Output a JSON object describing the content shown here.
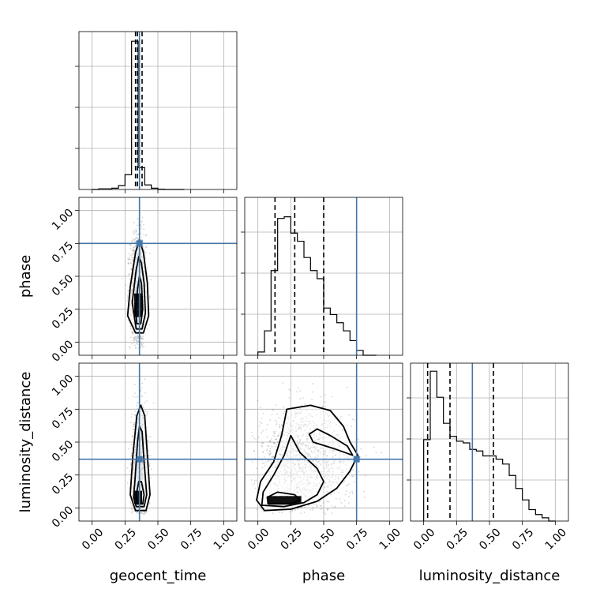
{
  "chart_data": {
    "type": "corner",
    "parameters": [
      "geocent_time",
      "phase",
      "luminosity_distance"
    ],
    "axis_range": [
      -0.1,
      1.1
    ],
    "ticks": [
      0.0,
      0.25,
      0.5,
      0.75,
      1.0
    ],
    "tick_labels": [
      "0.00",
      "0.25",
      "0.50",
      "0.75",
      "1.00"
    ],
    "axis_labels": {
      "geocent_time": "geocent_time",
      "phase": "phase",
      "luminosity_distance": "luminosity_distance"
    },
    "injection": {
      "geocent_time": 0.36,
      "phase": 0.75,
      "luminosity_distance": 0.37
    },
    "grid": true,
    "colors": {
      "truth": "#4477aa",
      "hist": "#000000",
      "grid": "#b0b0b0",
      "points": "#888888"
    },
    "marginals": {
      "geocent_time": {
        "edges": [
          0.0,
          0.05,
          0.1,
          0.15,
          0.2,
          0.25,
          0.3,
          0.35,
          0.4,
          0.45,
          0.5,
          0.55,
          0.6,
          0.65,
          0.7
        ],
        "counts": [
          0.0,
          0.1,
          0.1,
          0.2,
          0.6,
          2.3,
          23.0,
          3.4,
          0.7,
          0.2,
          0.05,
          0.0,
          0.0,
          0.0
        ],
        "ymax": 24,
        "quantiles": [
          0.33,
          0.345,
          0.38
        ]
      },
      "phase": {
        "edges": [
          0.0,
          0.05,
          0.1,
          0.15,
          0.2,
          0.25,
          0.3,
          0.35,
          0.4,
          0.45,
          0.5,
          0.55,
          0.6,
          0.65,
          0.7,
          0.75,
          0.8,
          0.85,
          0.9
        ],
        "counts": [
          2,
          15,
          52,
          84,
          85,
          75,
          70,
          60,
          52,
          47,
          29,
          25,
          20,
          15,
          9,
          3,
          0,
          0
        ],
        "ymax": 95,
        "quantiles": [
          0.13,
          0.28,
          0.5
        ]
      },
      "luminosity_distance": {
        "edges": [
          0.0,
          0.05,
          0.1,
          0.15,
          0.2,
          0.25,
          0.3,
          0.35,
          0.4,
          0.45,
          0.5,
          0.55,
          0.6,
          0.65,
          0.7,
          0.75,
          0.8,
          0.85,
          0.9,
          0.95,
          1.0
        ],
        "counts": [
          50,
          92,
          76,
          60,
          52,
          49,
          48,
          44,
          43,
          40,
          40,
          38,
          35,
          28,
          20,
          13,
          7,
          4,
          2,
          0
        ],
        "ymax": 95,
        "quantiles": [
          0.03,
          0.2,
          0.53
        ]
      }
    },
    "joint": [
      {
        "x": "geocent_time",
        "y": "phase",
        "cloud": {
          "cx": 0.35,
          "cy": 0.38,
          "sx": 0.03,
          "sy": 0.22
        },
        "contours": [
          [
            [
              0.33,
              0.07
            ],
            [
              0.39,
              0.07
            ],
            [
              0.43,
              0.2
            ],
            [
              0.42,
              0.45
            ],
            [
              0.39,
              0.68
            ],
            [
              0.36,
              0.78
            ],
            [
              0.33,
              0.68
            ],
            [
              0.29,
              0.42
            ],
            [
              0.27,
              0.2
            ]
          ],
          [
            [
              0.335,
              0.1
            ],
            [
              0.38,
              0.1
            ],
            [
              0.405,
              0.22
            ],
            [
              0.395,
              0.45
            ],
            [
              0.375,
              0.6
            ],
            [
              0.355,
              0.65
            ],
            [
              0.335,
              0.55
            ],
            [
              0.305,
              0.3
            ]
          ],
          [
            [
              0.34,
              0.14
            ],
            [
              0.37,
              0.14
            ],
            [
              0.385,
              0.25
            ],
            [
              0.375,
              0.45
            ],
            [
              0.36,
              0.5
            ],
            [
              0.345,
              0.4
            ],
            [
              0.33,
              0.25
            ]
          ]
        ],
        "dense": [
          [
            0.35,
            0.22
          ],
          [
            0.35,
            0.28
          ],
          [
            0.35,
            0.34
          ]
        ]
      },
      {
        "x": "geocent_time",
        "y": "luminosity_distance",
        "cloud": {
          "cx": 0.36,
          "cy": 0.25,
          "sx": 0.03,
          "sy": 0.25
        },
        "contours": [
          [
            [
              0.33,
              -0.02
            ],
            [
              0.41,
              -0.02
            ],
            [
              0.44,
              0.1
            ],
            [
              0.42,
              0.4
            ],
            [
              0.4,
              0.7
            ],
            [
              0.37,
              0.78
            ],
            [
              0.34,
              0.7
            ],
            [
              0.31,
              0.4
            ],
            [
              0.29,
              0.1
            ]
          ],
          [
            [
              0.335,
              0.01
            ],
            [
              0.395,
              0.01
            ],
            [
              0.415,
              0.1
            ],
            [
              0.395,
              0.35
            ],
            [
              0.38,
              0.58
            ],
            [
              0.36,
              0.62
            ],
            [
              0.345,
              0.5
            ],
            [
              0.325,
              0.2
            ],
            [
              0.315,
              0.08
            ]
          ],
          [
            [
              0.34,
              0.03
            ],
            [
              0.385,
              0.03
            ],
            [
              0.395,
              0.1
            ],
            [
              0.375,
              0.2
            ],
            [
              0.355,
              0.2
            ],
            [
              0.335,
              0.1
            ]
          ]
        ],
        "dense": [
          [
            0.35,
            0.06
          ],
          [
            0.35,
            0.1
          ]
        ]
      },
      {
        "x": "phase",
        "y": "luminosity_distance",
        "cloud": {
          "cx": 0.35,
          "cy": 0.35,
          "sx": 0.18,
          "sy": 0.2
        },
        "contours": [
          [
            [
              -0.01,
              0.06
            ],
            [
              0.05,
              -0.02
            ],
            [
              0.25,
              -0.01
            ],
            [
              0.45,
              0.05
            ],
            [
              0.6,
              0.15
            ],
            [
              0.7,
              0.28
            ],
            [
              0.76,
              0.4
            ],
            [
              0.7,
              0.5
            ],
            [
              0.65,
              0.62
            ],
            [
              0.55,
              0.74
            ],
            [
              0.4,
              0.78
            ],
            [
              0.22,
              0.75
            ],
            [
              0.18,
              0.55
            ],
            [
              0.12,
              0.35
            ],
            [
              0.02,
              0.2
            ]
          ],
          [
            [
              0.03,
              0.02
            ],
            [
              0.2,
              0.01
            ],
            [
              0.35,
              0.04
            ],
            [
              0.45,
              0.1
            ],
            [
              0.5,
              0.2
            ],
            [
              0.45,
              0.3
            ],
            [
              0.32,
              0.42
            ],
            [
              0.25,
              0.55
            ],
            [
              0.2,
              0.4
            ],
            [
              0.12,
              0.25
            ],
            [
              0.04,
              0.12
            ]
          ],
          [
            [
              0.08,
              0.03
            ],
            [
              0.25,
              0.03
            ],
            [
              0.32,
              0.06
            ],
            [
              0.28,
              0.1
            ],
            [
              0.15,
              0.12
            ],
            [
              0.07,
              0.08
            ]
          ],
          [
            [
              0.42,
              0.5
            ],
            [
              0.58,
              0.45
            ],
            [
              0.72,
              0.4
            ],
            [
              0.68,
              0.47
            ],
            [
              0.55,
              0.55
            ],
            [
              0.45,
              0.6
            ],
            [
              0.39,
              0.56
            ]
          ]
        ],
        "dense": [
          [
            0.1,
            0.06
          ],
          [
            0.15,
            0.06
          ],
          [
            0.2,
            0.06
          ],
          [
            0.25,
            0.06
          ],
          [
            0.3,
            0.06
          ]
        ]
      }
    ]
  }
}
